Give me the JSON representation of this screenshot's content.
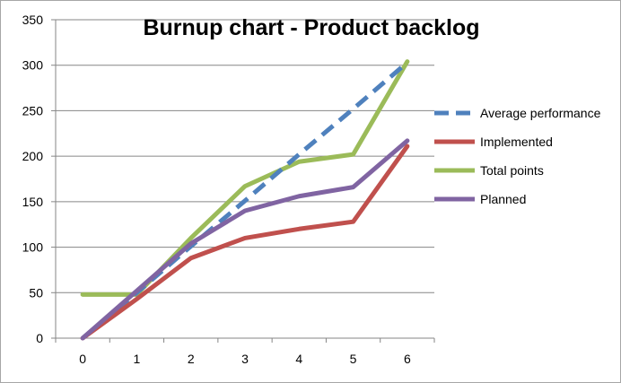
{
  "chart_data": {
    "type": "line",
    "title": "Burnup chart - Product backlog",
    "xlabel": "",
    "ylabel": "",
    "x": [
      0,
      1,
      2,
      3,
      4,
      5,
      6
    ],
    "x_ticks": [
      "0",
      "1",
      "2",
      "3",
      "4",
      "5",
      "6"
    ],
    "ylim": [
      0,
      350
    ],
    "y_ticks": [
      "0",
      "50",
      "100",
      "150",
      "200",
      "250",
      "300",
      "350"
    ],
    "grid": true,
    "legend_position": "right",
    "series": [
      {
        "name": "Average performance",
        "color": "#4f81bd",
        "style": "dashed",
        "x": [
          0,
          1,
          2,
          3,
          4,
          5,
          6
        ],
        "values": [
          0,
          50,
          101,
          151,
          202,
          252,
          303
        ]
      },
      {
        "name": "Implemented",
        "color": "#c0504d",
        "style": "solid",
        "x": [
          0,
          1,
          2,
          3,
          4,
          5,
          6
        ],
        "values": [
          0,
          43,
          88,
          110,
          120,
          128,
          211
        ]
      },
      {
        "name": "Total points",
        "color": "#9bbb59",
        "style": "solid",
        "x": [
          0,
          1,
          2,
          3,
          4,
          5,
          6
        ],
        "values": [
          48,
          48,
          110,
          167,
          194,
          202,
          304
        ]
      },
      {
        "name": "Planned",
        "color": "#8064a2",
        "style": "solid",
        "x": [
          0,
          1,
          2,
          3,
          4,
          5,
          6
        ],
        "values": [
          0,
          52,
          104,
          140,
          156,
          166,
          217
        ]
      }
    ]
  }
}
